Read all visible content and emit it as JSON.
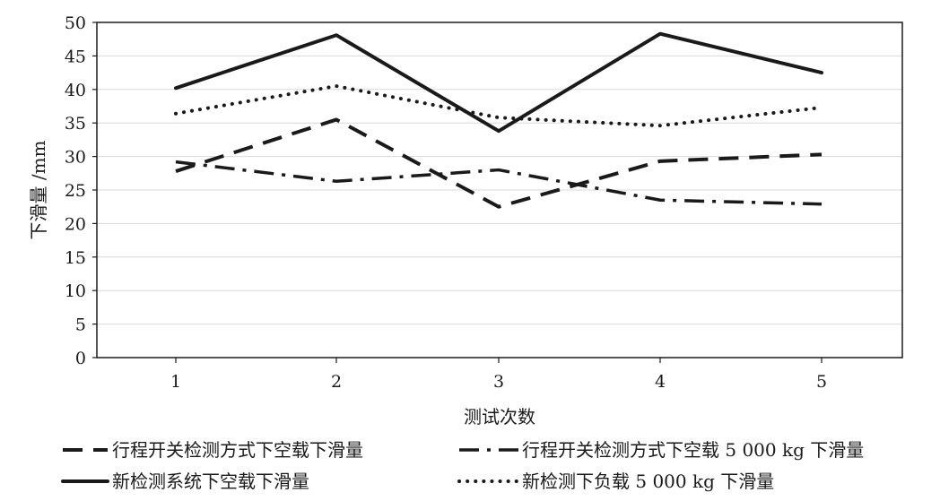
{
  "chart_data": {
    "type": "line",
    "title": "",
    "xlabel": "测试次数",
    "ylabel": "下滑量 /mm",
    "x": [
      1,
      2,
      3,
      4,
      5
    ],
    "x_tick_labels": [
      "1",
      "2",
      "3",
      "4",
      "5"
    ],
    "ylim": [
      0,
      50
    ],
    "y_ticks": [
      0,
      5,
      10,
      15,
      20,
      25,
      30,
      35,
      40,
      45,
      50
    ],
    "y_tick_labels": [
      "0",
      "5",
      "10",
      "15",
      "20",
      "25",
      "30",
      "35",
      "40",
      "45",
      "50"
    ],
    "grid": "horizontal",
    "legend_position": "bottom",
    "series": [
      {
        "name": "行程开关检测方式下空载下滑量",
        "style": "dashed",
        "color": "#1a1a1a",
        "values": [
          27.8,
          35.5,
          22.5,
          29.3,
          30.3
        ]
      },
      {
        "name": "行程开关检测方式下空载 5 000 kg 下滑量",
        "style": "dash-dot",
        "color": "#1a1a1a",
        "values": [
          29.2,
          26.3,
          28.0,
          23.5,
          22.9
        ]
      },
      {
        "name": "新检测系统下空载下滑量",
        "style": "solid",
        "color": "#1a1a1a",
        "values": [
          40.2,
          48.1,
          33.8,
          48.3,
          42.5
        ]
      },
      {
        "name": "新检测下负载 5 000 kg 下滑量",
        "style": "dotted",
        "color": "#1a1a1a",
        "values": [
          36.4,
          40.5,
          35.8,
          34.6,
          37.3
        ]
      }
    ]
  }
}
